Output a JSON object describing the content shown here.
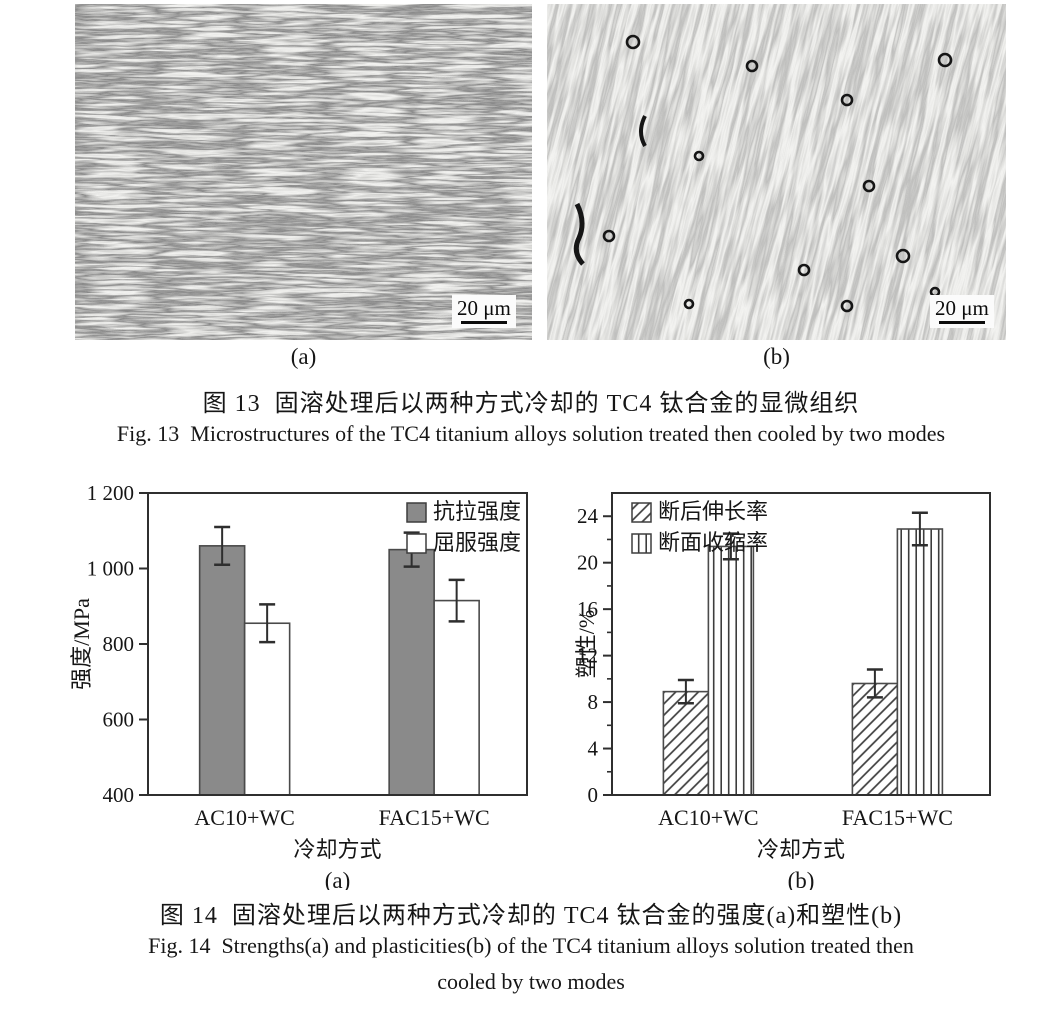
{
  "figure13": {
    "panel_a": {
      "label": "(a)",
      "scale_bar_label": "20 μm"
    },
    "panel_b": {
      "label": "(b)",
      "scale_bar_label": "20 μm"
    },
    "caption_zh": "图 13  固溶处理后以两种方式冷却的 TC4 钛合金的显微组织",
    "caption_en": "Fig. 13  Microstructures of the TC4 titanium alloys solution treated then cooled by two modes"
  },
  "figure14": {
    "caption_zh": "图 14  固溶处理后以两种方式冷却的 TC4 钛合金的强度(a)和塑性(b)",
    "caption_en_line1": "Fig. 14  Strengths(a) and plasticities(b) of the TC4 titanium alloys solution treated then",
    "caption_en_line2": "cooled by two modes"
  },
  "colors": {
    "bar_gray": "#8a8a8a",
    "bar_edge": "#4a4a4a",
    "axis": "#2f2f2f",
    "error_bar": "#2e2e2e",
    "hatch_line": "#3d3d3d"
  },
  "chart_data": [
    {
      "type": "bar",
      "panel_label": "(a)",
      "title": "",
      "xlabel": "冷却方式",
      "ylabel": "强度/MPa",
      "categories": [
        "AC10+WC",
        "FAC15+WC"
      ],
      "series": [
        {
          "name": "抗拉强度",
          "style": "solid-gray",
          "values": [
            1060,
            1050
          ],
          "errors": [
            50,
            45
          ]
        },
        {
          "name": "屈服强度",
          "style": "open-white",
          "values": [
            855,
            915
          ],
          "errors": [
            50,
            55
          ]
        }
      ],
      "ylim": [
        400,
        1200
      ],
      "yticks": [
        400,
        600,
        800,
        1000,
        1200
      ],
      "ytick_labels": [
        "400",
        "600",
        "800",
        "1 000",
        "1 200"
      ],
      "legend_position": "top-right",
      "grid": false
    },
    {
      "type": "bar",
      "panel_label": "(b)",
      "title": "",
      "xlabel": "冷却方式",
      "ylabel": "塑性/%",
      "categories": [
        "AC10+WC",
        "FAC15+WC"
      ],
      "series": [
        {
          "name": "断后伸长率",
          "style": "hatch-diagonal",
          "values": [
            8.9,
            9.6
          ],
          "errors": [
            1.0,
            1.2
          ]
        },
        {
          "name": "断面收缩率",
          "style": "hatch-vertical",
          "values": [
            21.4,
            22.9
          ],
          "errors": [
            1.1,
            1.4
          ]
        }
      ],
      "ylim": [
        0,
        26
      ],
      "yticks": [
        0,
        4,
        8,
        12,
        16,
        20,
        24
      ],
      "ytick_labels": [
        "0",
        "4",
        "8",
        "12",
        "16",
        "20",
        "24"
      ],
      "minor_ytick_step": 2,
      "legend_position": "top-left",
      "grid": false
    }
  ]
}
